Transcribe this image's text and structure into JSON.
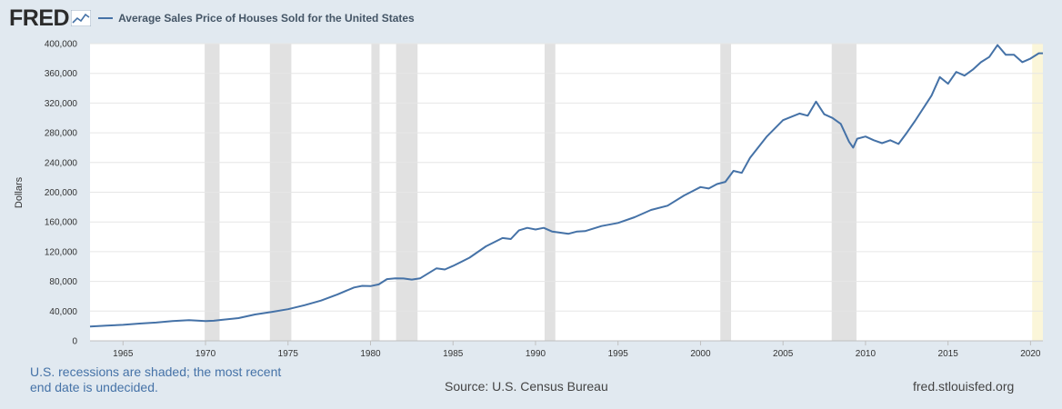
{
  "brand": {
    "logo": "FRED",
    "logo_icon": "line-chart-icon"
  },
  "colors": {
    "line": "#4572a7",
    "recession": "#e1e1e1",
    "undecided": "#fbf6d9",
    "background": "#e1e9f0",
    "plot": "#ffffff",
    "grid": "#e6e6e6"
  },
  "footer": {
    "note": "U.S. recessions are shaded; the most recent end date is undecided.",
    "source": "Source: U.S. Census Bureau",
    "url": "fred.stlouisfed.org"
  },
  "chart_data": {
    "type": "line",
    "ylabel": "Dollars",
    "ylim": [
      0,
      400000
    ],
    "yticks": [
      "0",
      "40,000",
      "80,000",
      "120,000",
      "160,000",
      "200,000",
      "240,000",
      "280,000",
      "320,000",
      "360,000",
      "400,000"
    ],
    "xlim": [
      1963.0,
      2020.75
    ],
    "xticks": [
      "1965",
      "1970",
      "1975",
      "1980",
      "1985",
      "1990",
      "1995",
      "2000",
      "2005",
      "2010",
      "2015",
      "2020"
    ],
    "grid": true,
    "legend": "top-left",
    "recessions": [
      [
        1969.95,
        1970.85
      ],
      [
        1973.9,
        1975.2
      ],
      [
        1980.05,
        1980.55
      ],
      [
        1981.55,
        1982.85
      ],
      [
        1990.55,
        1991.2
      ],
      [
        2001.2,
        2001.85
      ],
      [
        2007.95,
        2009.45
      ]
    ],
    "undecided_recession_start": 2020.1,
    "series": [
      {
        "name": "Average Sales Price of Houses Sold for the United States",
        "x": [
          1963.0,
          1964.0,
          1965.0,
          1966.0,
          1967.0,
          1968.0,
          1969.0,
          1970.0,
          1970.5,
          1971.0,
          1972.0,
          1973.0,
          1974.0,
          1975.0,
          1976.0,
          1977.0,
          1978.0,
          1979.0,
          1979.5,
          1980.0,
          1980.5,
          1981.0,
          1981.5,
          1982.0,
          1982.5,
          1983.0,
          1984.0,
          1984.5,
          1985.0,
          1986.0,
          1987.0,
          1988.0,
          1988.5,
          1989.0,
          1989.5,
          1990.0,
          1990.5,
          1991.0,
          1992.0,
          1992.5,
          1993.0,
          1994.0,
          1995.0,
          1996.0,
          1997.0,
          1998.0,
          1999.0,
          2000.0,
          2000.5,
          2001.0,
          2001.5,
          2002.0,
          2002.5,
          2003.0,
          2004.0,
          2005.0,
          2006.0,
          2006.5,
          2007.0,
          2007.5,
          2008.0,
          2008.5,
          2009.0,
          2009.25,
          2009.5,
          2010.0,
          2010.5,
          2011.0,
          2011.5,
          2012.0,
          2012.5,
          2013.0,
          2014.0,
          2014.5,
          2015.0,
          2015.5,
          2016.0,
          2016.5,
          2017.0,
          2017.5,
          2018.0,
          2018.5,
          2019.0,
          2019.5,
          2020.0,
          2020.5,
          2020.75
        ],
        "values": [
          19300,
          20500,
          21500,
          23300,
          24600,
          26600,
          27900,
          26600,
          27000,
          28300,
          30600,
          35500,
          38900,
          42600,
          48000,
          54200,
          62500,
          71800,
          74000,
          73600,
          76000,
          83000,
          84000,
          83900,
          82500,
          84000,
          97600,
          96000,
          100800,
          111900,
          127200,
          138300,
          137000,
          148800,
          152000,
          149800,
          152000,
          147200,
          144100,
          147000,
          147700,
          154500,
          158700,
          166400,
          176200,
          181900,
          195600,
          207000,
          205000,
          211000,
          214000,
          228700,
          226000,
          246300,
          274500,
          297000,
          305900,
          303000,
          322000,
          305000,
          300000,
          292000,
          268000,
          260000,
          272000,
          275000,
          270000,
          266000,
          270000,
          265000,
          280000,
          296000,
          330000,
          355000,
          346000,
          362000,
          357000,
          365000,
          375000,
          382000,
          398000,
          385000,
          385000,
          375000,
          380000,
          387000,
          387000
        ]
      }
    ]
  }
}
